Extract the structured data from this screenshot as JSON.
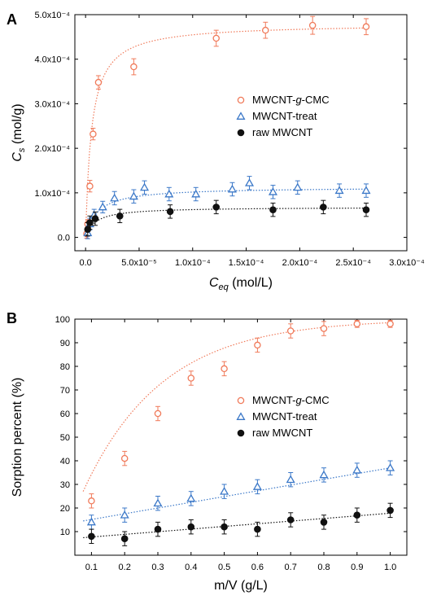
{
  "chart_data": [
    {
      "panel": "A",
      "type": "scatter",
      "xlabel_main": "C",
      "xlabel_sub": "eq",
      "xlabel_unit": " (mol/L)",
      "ylabel_main": "C",
      "ylabel_sub": "s",
      "ylabel_unit": " (mol/g)",
      "xlim": [
        -1e-05,
        0.0003
      ],
      "ylim": [
        -3e-05,
        0.0005
      ],
      "x_ticks": [
        0,
        5e-05,
        0.0001,
        0.00015,
        0.0002,
        0.00025,
        0.0003
      ],
      "x_tick_labels": [
        "0.0",
        "5.0x10⁻⁵",
        "1.0x10⁻⁴",
        "1.5x10⁻⁴",
        "2.0x10⁻⁴",
        "2.5x10⁻⁴",
        "3.0x10⁻⁴"
      ],
      "y_ticks": [
        0,
        0.0001,
        0.0002,
        0.0003,
        0.0004,
        0.0005
      ],
      "y_tick_labels": [
        "0.0",
        "1.0x10⁻⁴",
        "2.0x10⁻⁴",
        "3.0x10⁻⁴",
        "4.0x10⁻⁴",
        "5.0x10⁻⁴"
      ],
      "legend_position": "center-right",
      "series": [
        {
          "name": "MWCNT-g-CMC",
          "name_parts": [
            "MWCNT-",
            "g",
            "-CMC"
          ],
          "marker": "open-circle",
          "color": "#f07a5a",
          "fit": {
            "model": "langmuir",
            "qmax": 0.00048,
            "K": 180000
          },
          "x": [
            1e-06,
            2e-06,
            4e-06,
            7e-06,
            1.2e-05,
            4.5e-05,
            0.000122,
            0.000168,
            0.000212,
            0.000262
          ],
          "y": [
            8e-06,
            3e-05,
            0.000115,
            0.000232,
            0.000348,
            0.000383,
            0.000447,
            0.000465,
            0.000476,
            0.000473
          ],
          "err": [
            1e-05,
            1e-05,
            1.3e-05,
            1.3e-05,
            1.5e-05,
            1.8e-05,
            1.8e-05,
            1.8e-05,
            2e-05,
            1.8e-05
          ]
        },
        {
          "name": "MWCNT-treat",
          "name_parts": [
            "MWCNT-treat"
          ],
          "marker": "open-triangle",
          "color": "#3b78c8",
          "fit": {
            "model": "langmuir",
            "qmax": 0.000113,
            "K": 90000
          },
          "x": [
            2e-06,
            4e-06,
            8e-06,
            1.6e-05,
            2.7e-05,
            4.5e-05,
            5.5e-05,
            7.8e-05,
            0.000103,
            0.000137,
            0.000153,
            0.000175,
            0.000198,
            0.000237,
            0.000262
          ],
          "y": [
            1e-05,
            3e-05,
            5e-05,
            6.8e-05,
            8.8e-05,
            9.2e-05,
            0.000112,
            9.7e-05,
            9.7e-05,
            0.000108,
            0.000122,
            0.000102,
            0.000112,
            0.000105,
            0.000105
          ],
          "err": [
            1.3e-05,
            1.3e-05,
            1.3e-05,
            1.3e-05,
            1.5e-05,
            1.5e-05,
            1.5e-05,
            1.5e-05,
            1.5e-05,
            1.5e-05,
            1.5e-05,
            1.5e-05,
            1.5e-05,
            1.5e-05,
            1.5e-05
          ]
        },
        {
          "name": "raw MWCNT",
          "name_parts": [
            "raw MWCNT"
          ],
          "marker": "filled-circle",
          "color": "#111111",
          "fit": {
            "model": "langmuir",
            "qmax": 6.8e-05,
            "K": 110000
          },
          "x": [
            2e-06,
            4e-06,
            9e-06,
            3.2e-05,
            7.9e-05,
            0.000122,
            0.000175,
            0.000222,
            0.000262
          ],
          "y": [
            1.8e-05,
            3.3e-05,
            4.2e-05,
            4.8e-05,
            5.8e-05,
            6.8e-05,
            6.2e-05,
            6.8e-05,
            6.2e-05
          ],
          "err": [
            1.5e-05,
            1.5e-05,
            1.5e-05,
            1.5e-05,
            1.5e-05,
            1.5e-05,
            1.5e-05,
            1.5e-05,
            1.5e-05
          ]
        }
      ]
    },
    {
      "panel": "B",
      "type": "scatter",
      "xlabel": "m/V (g/L)",
      "ylabel": "Sorption percent (%)",
      "xlim": [
        0.05,
        1.05
      ],
      "ylim": [
        0,
        100
      ],
      "x_ticks": [
        0.1,
        0.2,
        0.3,
        0.4,
        0.5,
        0.6,
        0.7,
        0.8,
        0.9,
        1.0
      ],
      "x_tick_labels": [
        "0.1",
        "0.2",
        "0.3",
        "0.4",
        "0.5",
        "0.6",
        "0.7",
        "0.8",
        "0.9",
        "1.0"
      ],
      "y_ticks": [
        10,
        20,
        30,
        40,
        50,
        60,
        70,
        80,
        90,
        100
      ],
      "y_tick_labels": [
        "10",
        "20",
        "30",
        "40",
        "50",
        "60",
        "70",
        "80",
        "90",
        "100"
      ],
      "legend_position": "center-right",
      "series": [
        {
          "name": "MWCNT-g-CMC",
          "name_parts": [
            "MWCNT-",
            "g",
            "-CMC"
          ],
          "marker": "open-circle",
          "color": "#f07a5a",
          "fit": {
            "model": "saturation",
            "a": 100,
            "k": 4.2
          },
          "x": [
            0.1,
            0.2,
            0.3,
            0.4,
            0.5,
            0.6,
            0.7,
            0.8,
            0.9,
            1.0
          ],
          "y": [
            23,
            41,
            60,
            75,
            79,
            89,
            95,
            96,
            98,
            98
          ],
          "err": [
            3,
            3,
            3,
            3,
            3,
            3,
            3,
            3,
            1.5,
            1.5
          ]
        },
        {
          "name": "MWCNT-treat",
          "name_parts": [
            "MWCNT-treat"
          ],
          "marker": "open-triangle",
          "color": "#3b78c8",
          "fit": {
            "model": "linear",
            "intercept": 12.7,
            "slope": 24.3
          },
          "x": [
            0.1,
            0.2,
            0.3,
            0.4,
            0.5,
            0.6,
            0.7,
            0.8,
            0.9,
            1.0
          ],
          "y": [
            14,
            17,
            22,
            24,
            27,
            29,
            32,
            34,
            36,
            37
          ],
          "err": [
            3,
            3,
            3,
            3,
            3,
            3,
            3,
            3,
            3,
            3
          ]
        },
        {
          "name": "raw MWCNT",
          "name_parts": [
            "raw MWCNT"
          ],
          "marker": "filled-circle",
          "color": "#111111",
          "fit": {
            "model": "linear",
            "intercept": 6.6,
            "slope": 11.2
          },
          "x": [
            0.1,
            0.2,
            0.3,
            0.4,
            0.5,
            0.6,
            0.7,
            0.8,
            0.9,
            1.0
          ],
          "y": [
            8,
            7,
            11,
            12,
            12,
            11,
            15,
            14,
            17,
            19
          ],
          "err": [
            3,
            3,
            3,
            3,
            3,
            3,
            3,
            3,
            3,
            3
          ]
        }
      ]
    }
  ]
}
